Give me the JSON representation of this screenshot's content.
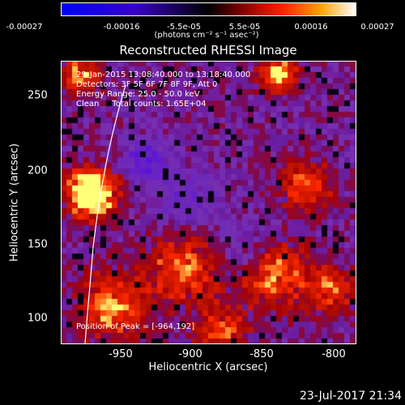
{
  "colorbar": {
    "ticks": [
      "-0.00027",
      "-0.00016",
      "-5.5e-05",
      "5.5e-05",
      "0.00016",
      "0.00027"
    ],
    "units": "(photons cm⁻² s⁻¹ asec⁻²)"
  },
  "image": {
    "title": "Reconstructed RHESSI Image",
    "xlabel": "Heliocentric X (arcsec)",
    "ylabel": "Heliocentric Y (arcsec)",
    "x_ticks": [
      "-950",
      "-900",
      "-850",
      "-800"
    ],
    "y_ticks": [
      "250",
      "200",
      "150",
      "100"
    ],
    "info": {
      "time": "29-Jan-2015 13:08:40.000 to 13:18:40.000",
      "detectors": "Detectors: 3F 5F 6F 7F 8F 9F, Att 0",
      "energy": "Energy Range: 25.0 - 50.0 keV",
      "clean": "Clean     Total counts: 1.65E+04"
    },
    "peak": "Position of Peak = [-964,192]"
  },
  "timestamp": "23-Jul-2017 21:34"
}
